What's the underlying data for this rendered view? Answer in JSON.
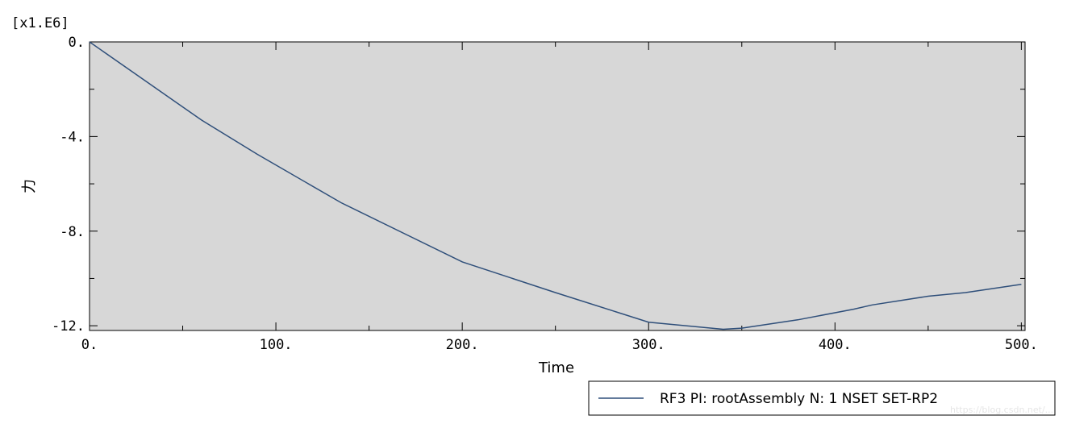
{
  "chart_data": {
    "type": "line",
    "scale_label": "[x1.E6]",
    "xlabel": "Time",
    "ylabel": "力",
    "xlim": [
      0,
      502
    ],
    "ylim": [
      -12.2,
      0
    ],
    "x_ticks": [
      {
        "value": 0,
        "label": "0."
      },
      {
        "value": 100,
        "label": "100."
      },
      {
        "value": 200,
        "label": "200."
      },
      {
        "value": 300,
        "label": "300."
      },
      {
        "value": 400,
        "label": "400."
      },
      {
        "value": 500,
        "label": "500."
      }
    ],
    "y_ticks": [
      {
        "value": 0,
        "label": "0."
      },
      {
        "value": -4,
        "label": "-4."
      },
      {
        "value": -8,
        "label": "-8."
      },
      {
        "value": -12,
        "label": "-12."
      }
    ],
    "series": [
      {
        "name": "RF3 PI: rootAssembly N: 1 NSET SET-RP2",
        "color": "#2f4f7a",
        "x": [
          0,
          30,
          60,
          90,
          135,
          200,
          250,
          300,
          340,
          350,
          380,
          410,
          420,
          450,
          470,
          500
        ],
        "y": [
          0,
          -1.65,
          -3.3,
          -4.75,
          -6.8,
          -9.3,
          -10.6,
          -11.85,
          -12.15,
          -12.1,
          -11.75,
          -11.3,
          -11.12,
          -10.75,
          -10.6,
          -10.25
        ]
      }
    ],
    "legend_position": "bottom-right",
    "grid": false
  },
  "watermark": "https://blog.csdn.net/..."
}
